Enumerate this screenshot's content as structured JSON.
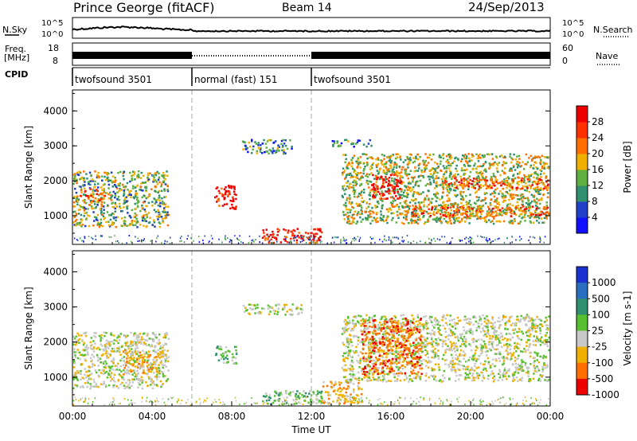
{
  "header": {
    "title": "Prince George (fitACF)",
    "beam": "Beam 14",
    "date": "24/Sep/2013"
  },
  "side_labels": {
    "nsky": "N.Sky",
    "nsearch": "N.Search",
    "freq_line1": "Freq.",
    "freq_line2": "[MHz]",
    "nave": "Nave",
    "cpid": "CPID"
  },
  "noise_axis": {
    "left_ticks": [
      "10^5",
      "10^0"
    ],
    "right_ticks": [
      "10^5",
      "10^0"
    ]
  },
  "freq_axis": {
    "left_ticks": [
      "18",
      "8"
    ],
    "right_ticks": [
      "60",
      "0"
    ]
  },
  "cpid_segments": [
    {
      "label": "twofsound 3501",
      "start_hour": 0,
      "end_hour": 6
    },
    {
      "label": "normal (fast) 151",
      "start_hour": 6,
      "end_hour": 12
    },
    {
      "label": "twofsound 3501",
      "start_hour": 12,
      "end_hour": 24
    }
  ],
  "chart_data": [
    {
      "type": "heatmap",
      "title": "",
      "xlabel": "Time UT",
      "ylabel": "Slant Range [km]",
      "x_ticks": [
        "00:00",
        "04:00",
        "08:00",
        "12:00",
        "16:00",
        "20:00",
        "00:00"
      ],
      "x_range_hours": [
        0,
        24
      ],
      "y_ticks": [
        1000,
        2000,
        3000,
        4000
      ],
      "y_range": [
        180,
        4600
      ],
      "colorbar": {
        "label": "Power [dB]",
        "ticks": [
          4,
          8,
          12,
          16,
          20,
          24,
          28
        ],
        "range": [
          0,
          32
        ],
        "colors": [
          "#1010ff",
          "#2040c8",
          "#2f8f6f",
          "#60b040",
          "#f0b000",
          "#ff7000",
          "#ff3000",
          "#ee0000"
        ]
      },
      "regions": [
        {
          "t0": 0.0,
          "t1": 4.8,
          "r0": 700,
          "r1": 2300,
          "level": 12
        },
        {
          "t0": 0.2,
          "t1": 1.6,
          "r0": 1400,
          "r1": 1800,
          "level": 20
        },
        {
          "t0": 7.1,
          "t1": 8.2,
          "r0": 1200,
          "r1": 1900,
          "level": 28
        },
        {
          "t0": 9.5,
          "t1": 12.5,
          "r0": 250,
          "r1": 650,
          "level": 26
        },
        {
          "t0": 13.5,
          "t1": 23.9,
          "r0": 800,
          "r1": 2800,
          "level": 14
        },
        {
          "t0": 15.0,
          "t1": 16.5,
          "r0": 1500,
          "r1": 2200,
          "level": 28
        },
        {
          "t0": 17.0,
          "t1": 23.9,
          "r0": 1000,
          "r1": 1300,
          "level": 22
        },
        {
          "t0": 18.5,
          "t1": 23.9,
          "r0": 1800,
          "r1": 2100,
          "level": 22
        },
        {
          "t0": 8.5,
          "t1": 11.0,
          "r0": 2800,
          "r1": 3200,
          "level": 8
        },
        {
          "t0": 13.0,
          "t1": 15.0,
          "r0": 3000,
          "r1": 3200,
          "level": 8
        }
      ]
    },
    {
      "type": "heatmap",
      "title": "",
      "xlabel": "Time UT",
      "ylabel": "Slant Range [km]",
      "x_ticks": [
        "00:00",
        "04:00",
        "08:00",
        "12:00",
        "16:00",
        "20:00",
        "00:00"
      ],
      "x_range_hours": [
        0,
        24
      ],
      "y_ticks": [
        1000,
        2000,
        3000,
        4000
      ],
      "y_range": [
        180,
        4600
      ],
      "colorbar": {
        "label": "Velocity [m s-1]",
        "ticks": [
          1000,
          500,
          100,
          25,
          -25,
          -100,
          -500,
          -1000
        ],
        "colors": [
          "#1a30d0",
          "#2a6ec0",
          "#2f8f6f",
          "#58c030",
          "#c8c8c8",
          "#f0b000",
          "#ff7000",
          "#ee0000"
        ]
      },
      "regions": [
        {
          "t0": 0.0,
          "t1": 4.8,
          "r0": 700,
          "r1": 2300,
          "level": 4
        },
        {
          "t0": 2.5,
          "t1": 4.5,
          "r0": 1100,
          "r1": 1800,
          "level": 5
        },
        {
          "t0": 7.1,
          "t1": 8.2,
          "r0": 1400,
          "r1": 1900,
          "level": 3
        },
        {
          "t0": 9.5,
          "t1": 12.5,
          "r0": 250,
          "r1": 650,
          "level": 3
        },
        {
          "t0": 12.5,
          "t1": 14.5,
          "r0": 250,
          "r1": 900,
          "level": 5
        },
        {
          "t0": 13.5,
          "t1": 23.9,
          "r0": 900,
          "r1": 2800,
          "level": 4
        },
        {
          "t0": 14.5,
          "t1": 17.5,
          "r0": 1100,
          "r1": 2700,
          "level": 6
        },
        {
          "t0": 8.5,
          "t1": 11.5,
          "r0": 2800,
          "r1": 3100,
          "level": 4
        }
      ]
    }
  ]
}
